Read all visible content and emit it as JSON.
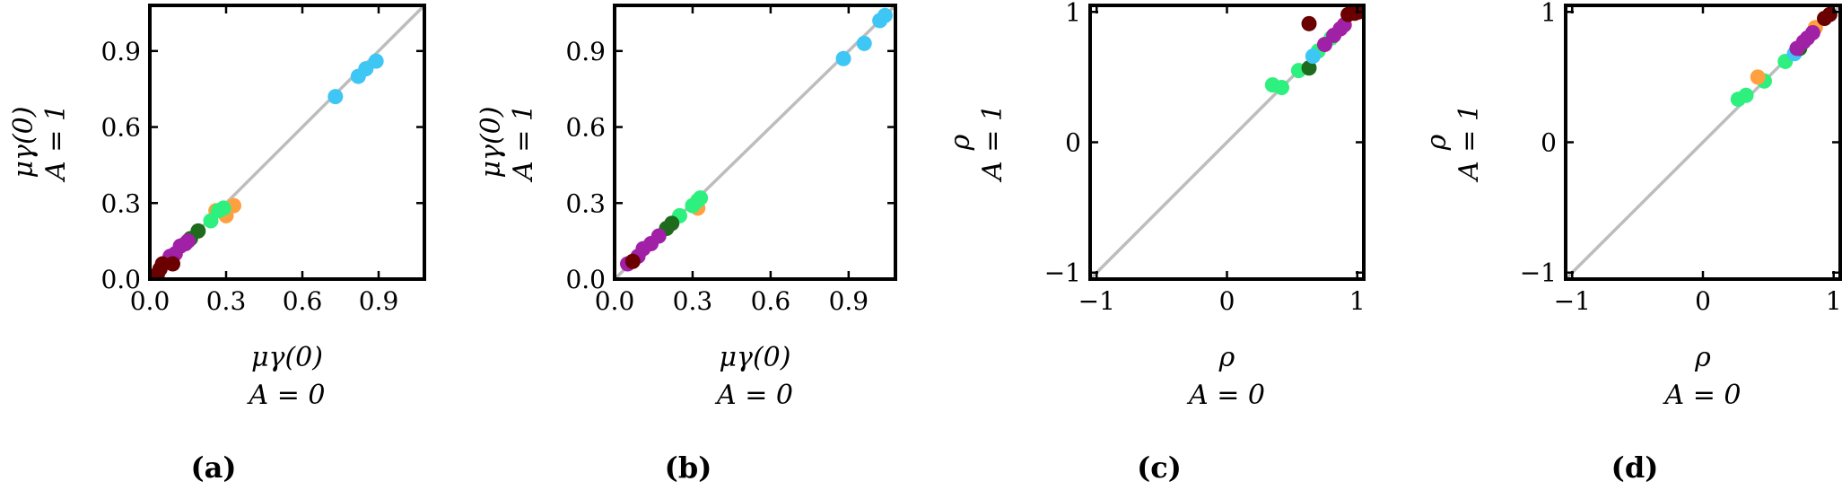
{
  "colors": {
    "diagonal": "#bdbdbd",
    "sky": "#3ec6f5",
    "orange": "#ffa040",
    "green_light": "#2ef07e",
    "green_dark": "#1e6b1e",
    "purple": "#a020a6",
    "maroon": "#6b0000"
  },
  "chart_data": [
    {
      "type": "scatter",
      "panel_label": "(a)",
      "xlabel_line1": "μγ(0)",
      "xlabel_line2": "A = 0",
      "ylabel_line1": "μγ(0)",
      "ylabel_line2": "A = 1",
      "xlim": [
        0,
        1.08
      ],
      "ylim": [
        0,
        1.08
      ],
      "xticks": [
        0.0,
        0.3,
        0.6,
        0.9
      ],
      "yticks": [
        0.0,
        0.3,
        0.6,
        0.9
      ],
      "tick_labels": [
        "0.0",
        "0.3",
        "0.6",
        "0.9"
      ],
      "diagonal": true,
      "series": [
        {
          "color": "#3ec6f5",
          "x": [
            0.73,
            0.82,
            0.85,
            0.89
          ],
          "y": [
            0.72,
            0.8,
            0.83,
            0.86
          ]
        },
        {
          "color": "#ffa040",
          "x": [
            0.26,
            0.3,
            0.33
          ],
          "y": [
            0.27,
            0.25,
            0.29
          ]
        },
        {
          "color": "#2ef07e",
          "x": [
            0.24,
            0.27,
            0.29
          ],
          "y": [
            0.23,
            0.27,
            0.28
          ]
        },
        {
          "color": "#1e6b1e",
          "x": [
            0.16,
            0.19
          ],
          "y": [
            0.16,
            0.19
          ]
        },
        {
          "color": "#a020a6",
          "x": [
            0.05,
            0.08,
            0.1,
            0.12,
            0.14,
            0.15
          ],
          "y": [
            0.06,
            0.09,
            0.1,
            0.13,
            0.14,
            0.15
          ]
        },
        {
          "color": "#6b0000",
          "x": [
            0.03,
            0.04,
            0.05,
            0.09
          ],
          "y": [
            0.02,
            0.04,
            0.06,
            0.06
          ]
        }
      ]
    },
    {
      "type": "scatter",
      "panel_label": "(b)",
      "xlabel_line1": "μγ(0)",
      "xlabel_line2": "A = 0",
      "ylabel_line1": "μγ(0)",
      "ylabel_line2": "A = 1",
      "xlim": [
        0,
        1.08
      ],
      "ylim": [
        0,
        1.08
      ],
      "xticks": [
        0.0,
        0.3,
        0.6,
        0.9
      ],
      "yticks": [
        0.0,
        0.3,
        0.6,
        0.9
      ],
      "tick_labels": [
        "0.0",
        "0.3",
        "0.6",
        "0.9"
      ],
      "diagonal": true,
      "series": [
        {
          "color": "#3ec6f5",
          "x": [
            0.88,
            0.96,
            1.02,
            1.04
          ],
          "y": [
            0.87,
            0.93,
            1.02,
            1.04
          ]
        },
        {
          "color": "#ffa040",
          "x": [
            0.32
          ],
          "y": [
            0.28
          ]
        },
        {
          "color": "#2ef07e",
          "x": [
            0.25,
            0.3,
            0.32,
            0.33
          ],
          "y": [
            0.25,
            0.29,
            0.31,
            0.32
          ]
        },
        {
          "color": "#1e6b1e",
          "x": [
            0.2,
            0.22
          ],
          "y": [
            0.2,
            0.22
          ]
        },
        {
          "color": "#a020a6",
          "x": [
            0.05,
            0.09,
            0.11,
            0.14,
            0.17
          ],
          "y": [
            0.06,
            0.09,
            0.12,
            0.14,
            0.17
          ]
        },
        {
          "color": "#6b0000",
          "x": [
            0.07
          ],
          "y": [
            0.07
          ]
        }
      ]
    },
    {
      "type": "scatter",
      "panel_label": "(c)",
      "xlabel_line1": "ρ",
      "xlabel_line2": "A = 0",
      "ylabel_line1": "ρ",
      "ylabel_line2": "A = 1",
      "xlim": [
        -1.05,
        1.05
      ],
      "ylim": [
        -1.05,
        1.05
      ],
      "xticks": [
        -1,
        0,
        1
      ],
      "yticks": [
        -1,
        0,
        1
      ],
      "tick_labels": [
        "−1",
        "0",
        "1"
      ],
      "diagonal": true,
      "series": [
        {
          "color": "#2ef07e",
          "x": [
            0.35,
            0.42,
            0.55,
            0.7,
            0.8
          ],
          "y": [
            0.44,
            0.42,
            0.55,
            0.7,
            0.8
          ]
        },
        {
          "color": "#1e6b1e",
          "x": [
            0.63
          ],
          "y": [
            0.57
          ]
        },
        {
          "color": "#3ec6f5",
          "x": [
            0.66
          ],
          "y": [
            0.66
          ]
        },
        {
          "color": "#a020a6",
          "x": [
            0.75,
            0.82,
            0.87,
            0.9
          ],
          "y": [
            0.75,
            0.82,
            0.87,
            0.9
          ]
        },
        {
          "color": "#6b0000",
          "x": [
            0.63,
            0.93,
            0.98,
            1.01
          ],
          "y": [
            0.91,
            0.98,
            0.99,
            1.0
          ]
        }
      ]
    },
    {
      "type": "scatter",
      "panel_label": "(d)",
      "xlabel_line1": "ρ",
      "xlabel_line2": "A = 0",
      "ylabel_line1": "ρ",
      "ylabel_line2": "A = 1",
      "xlim": [
        -1.05,
        1.05
      ],
      "ylim": [
        -1.05,
        1.05
      ],
      "xticks": [
        -1,
        0,
        1
      ],
      "yticks": [
        -1,
        0,
        1
      ],
      "tick_labels": [
        "−1",
        "0",
        "1"
      ],
      "diagonal": true,
      "series": [
        {
          "color": "#2ef07e",
          "x": [
            0.27,
            0.33,
            0.47,
            0.63
          ],
          "y": [
            0.33,
            0.36,
            0.47,
            0.62
          ]
        },
        {
          "color": "#ffa040",
          "x": [
            0.42,
            0.86
          ],
          "y": [
            0.5,
            0.88
          ]
        },
        {
          "color": "#3ec6f5",
          "x": [
            0.7
          ],
          "y": [
            0.68
          ]
        },
        {
          "color": "#1e6b1e",
          "x": [
            0.74
          ],
          "y": [
            0.72
          ]
        },
        {
          "color": "#a020a6",
          "x": [
            0.72,
            0.77,
            0.8,
            0.84
          ],
          "y": [
            0.72,
            0.77,
            0.8,
            0.84
          ]
        },
        {
          "color": "#6b0000",
          "x": [
            0.93,
            0.97
          ],
          "y": [
            0.95,
            0.98
          ]
        }
      ]
    }
  ]
}
